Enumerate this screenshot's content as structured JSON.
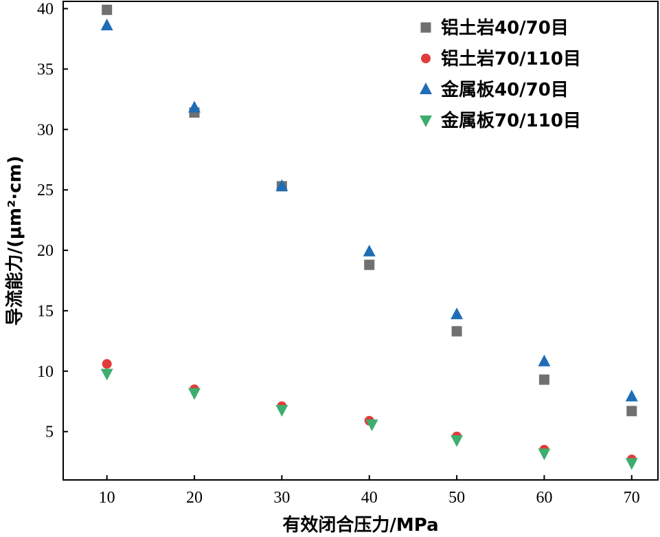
{
  "chart_data": {
    "type": "scatter",
    "xlabel": "有效闭合压力/MPa",
    "ylabel": "导流能力/(μm²·cm)",
    "xlim": [
      5,
      73
    ],
    "ylim": [
      1.0,
      40.6
    ],
    "xticks": [
      10,
      20,
      30,
      40,
      50,
      60,
      70
    ],
    "yticks": [
      5,
      10,
      15,
      20,
      25,
      30,
      35,
      40
    ],
    "legend_position": "top-right",
    "grid": false,
    "series": [
      {
        "name": "铝土岩40/70目",
        "marker": "square",
        "color": "#707070",
        "x": [
          10,
          20,
          30,
          40,
          50,
          60,
          70
        ],
        "y": [
          39.9,
          31.4,
          25.3,
          18.8,
          13.3,
          9.3,
          6.7
        ]
      },
      {
        "name": "铝土岩70/110目",
        "marker": "circle",
        "color": "#e03c3c",
        "x": [
          10,
          20,
          30,
          40,
          50,
          60,
          70
        ],
        "y": [
          10.6,
          8.5,
          7.1,
          5.9,
          4.6,
          3.5,
          2.7
        ]
      },
      {
        "name": "金属板40/70目",
        "marker": "triangle-up",
        "color": "#1f6db5",
        "x": [
          10,
          20,
          30,
          40,
          50,
          60,
          70
        ],
        "y": [
          38.6,
          31.8,
          25.3,
          19.9,
          14.7,
          10.8,
          7.9
        ]
      },
      {
        "name": "金属板70/110目",
        "marker": "triangle-down",
        "color": "#3dae6e",
        "x": [
          10,
          20,
          30,
          40.3,
          50,
          60,
          70
        ],
        "y": [
          9.8,
          8.2,
          6.8,
          5.6,
          4.3,
          3.2,
          2.4
        ]
      }
    ]
  }
}
